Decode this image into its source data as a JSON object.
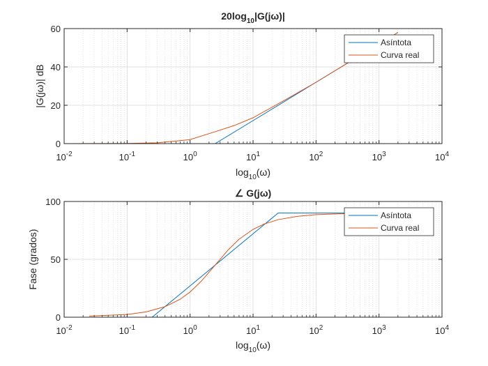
{
  "figure": {
    "background": "#ffffff",
    "axes_color": "#262626",
    "grid_color": "#d9d9d9"
  },
  "chart_data": [
    {
      "type": "line",
      "title": "20log10|G(jω)|",
      "title_parts": {
        "base": "20log",
        "sub": "10",
        "rest": "|G(jω)|"
      },
      "xlabel": "log10(ω)",
      "xlabel_parts": {
        "base": "log",
        "sub": "10",
        "rest": "(ω)"
      },
      "ylabel": "|G(jω)| dB",
      "xscale": "log",
      "xlim": [
        0.01,
        10000
      ],
      "ylim": [
        0,
        60
      ],
      "xticks": [
        {
          "value": 0.01,
          "base": "10",
          "exp": "-2"
        },
        {
          "value": 0.1,
          "base": "10",
          "exp": "-1"
        },
        {
          "value": 1,
          "base": "10",
          "exp": "0"
        },
        {
          "value": 10,
          "base": "10",
          "exp": "1"
        },
        {
          "value": 100,
          "base": "10",
          "exp": "2"
        },
        {
          "value": 1000,
          "base": "10",
          "exp": "3"
        },
        {
          "value": 10000,
          "base": "10",
          "exp": "4"
        }
      ],
      "yticks": [
        0,
        20,
        40,
        60
      ],
      "grid": true,
      "legend": "top-right",
      "series": [
        {
          "name": "Asíntota",
          "color": "#0072BD",
          "x": [
            0.01,
            2.5,
            10,
            100,
            1000,
            2000
          ],
          "y": [
            0,
            0,
            12,
            32,
            52,
            58
          ]
        },
        {
          "name": "Curva real",
          "color": "#D95319",
          "x": [
            0.01,
            0.1,
            0.3,
            1,
            2.5,
            5,
            10,
            30,
            100,
            1000,
            2000
          ],
          "y": [
            0,
            0.1,
            0.4,
            2.1,
            6.2,
            9.4,
            13.5,
            22.2,
            32.0,
            52.0,
            58.0
          ]
        }
      ]
    },
    {
      "type": "line",
      "title": "∠ G(jω)",
      "xlabel": "log10(ω)",
      "xlabel_parts": {
        "base": "log",
        "sub": "10",
        "rest": "(ω)"
      },
      "ylabel": "Fase (grados)",
      "xscale": "log",
      "xlim": [
        0.01,
        10000
      ],
      "ylim": [
        0,
        100
      ],
      "xticks": [
        {
          "value": 0.01,
          "base": "10",
          "exp": "-2"
        },
        {
          "value": 0.1,
          "base": "10",
          "exp": "-1"
        },
        {
          "value": 1,
          "base": "10",
          "exp": "0"
        },
        {
          "value": 10,
          "base": "10",
          "exp": "1"
        },
        {
          "value": 100,
          "base": "10",
          "exp": "2"
        },
        {
          "value": 1000,
          "base": "10",
          "exp": "3"
        },
        {
          "value": 10000,
          "base": "10",
          "exp": "4"
        }
      ],
      "yticks": [
        0,
        50,
        100
      ],
      "grid": true,
      "legend": "top-right",
      "series": [
        {
          "name": "Asíntota",
          "color": "#0072BD",
          "x": [
            0.01,
            0.25,
            25,
            2000
          ],
          "y": [
            0,
            0,
            90,
            90
          ]
        },
        {
          "name": "Curva real",
          "color": "#D95319",
          "x": [
            0.025,
            0.1,
            0.2,
            0.4,
            0.7,
            1,
            1.5,
            2.5,
            4,
            6,
            10,
            15,
            25,
            50,
            100,
            300,
            1000,
            2000
          ],
          "y": [
            1,
            2.3,
            4.6,
            9.1,
            15.6,
            21.8,
            31.0,
            45.0,
            58.0,
            67.4,
            75.9,
            80.5,
            84.3,
            87.1,
            88.6,
            89.5,
            89.9,
            90
          ]
        }
      ]
    }
  ]
}
